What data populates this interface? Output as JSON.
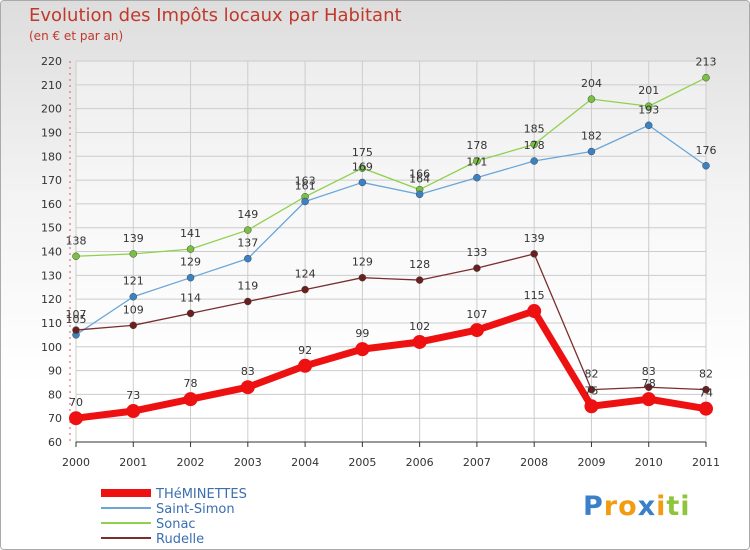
{
  "header": {
    "title": "Evolution des Impôts locaux par Habitant",
    "subtitle": "(en € et par an)"
  },
  "brand": {
    "letters": [
      "P",
      "r",
      "o",
      "x",
      "i",
      "t",
      "i"
    ],
    "colors": [
      "#3a7fc8",
      "#f39c12",
      "#f39c12",
      "#3a7fc8",
      "#f39c12",
      "#8fc43d",
      "#8fc43d"
    ]
  },
  "chart_data": {
    "type": "line",
    "title": "Evolution des Impôts locaux par Habitant",
    "subtitle": "(en € et par an)",
    "xlabel": "",
    "ylabel": "",
    "ylim": [
      60,
      220
    ],
    "yticks": [
      60,
      70,
      80,
      90,
      100,
      110,
      120,
      130,
      140,
      150,
      160,
      170,
      180,
      190,
      200,
      210,
      220
    ],
    "categories": [
      "2000",
      "2001",
      "2002",
      "2003",
      "2004",
      "2005",
      "2006",
      "2007",
      "2008",
      "2009",
      "2010",
      "2011"
    ],
    "legend_position": "bottom-left",
    "series": [
      {
        "name": "Sonac",
        "color": "#8fd14f",
        "marker": "#7ac142",
        "width": "thin",
        "values": [
          138,
          139,
          141,
          149,
          163,
          175,
          166,
          178,
          185,
          204,
          201,
          213
        ]
      },
      {
        "name": "Saint-Simon",
        "color": "#6aa6d8",
        "marker": "#3a82c4",
        "width": "thin",
        "values": [
          105,
          121,
          129,
          137,
          161,
          169,
          164,
          171,
          178,
          182,
          193,
          176
        ]
      },
      {
        "name": "Rudelle",
        "color": "#7a2e2e",
        "marker": "#6b1f1f",
        "width": "thin",
        "values": [
          107,
          109,
          114,
          119,
          124,
          129,
          128,
          133,
          139,
          82,
          83,
          82
        ]
      },
      {
        "name": "THéMINETTES",
        "color": "#ee1111",
        "marker": "#ee1111",
        "width": "thick",
        "values": [
          70,
          73,
          78,
          83,
          92,
          99,
          102,
          107,
          115,
          75,
          78,
          74
        ]
      }
    ],
    "legend": [
      "THéMINETTES",
      "Saint-Simon",
      "Sonac",
      "Rudelle"
    ]
  }
}
